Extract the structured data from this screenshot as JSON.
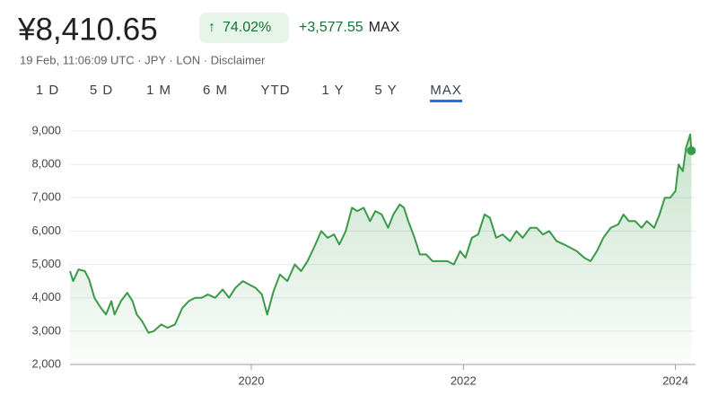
{
  "header": {
    "price": "¥8,410.65",
    "change_pct": "74.02%",
    "change_abs": "+3,577.55",
    "period": "MAX",
    "meta": "19 Feb, 11:06:09 UTC · JPY · LON · Disclaimer"
  },
  "tabs": [
    "1 D",
    "5 D",
    "1 M",
    "6 M",
    "YTD",
    "1 Y",
    "5 Y",
    "MAX"
  ],
  "active_tab": 7,
  "chart_data": {
    "type": "line",
    "color": "#3a9a47",
    "grid": true,
    "x": [
      2018.29,
      2018.32,
      2018.37,
      2018.43,
      2018.47,
      2018.52,
      2018.58,
      2018.63,
      2018.68,
      2018.71,
      2018.77,
      2018.83,
      2018.88,
      2018.92,
      2018.97,
      2019.03,
      2019.08,
      2019.15,
      2019.21,
      2019.28,
      2019.35,
      2019.41,
      2019.47,
      2019.53,
      2019.59,
      2019.66,
      2019.73,
      2019.79,
      2019.85,
      2019.92,
      2019.98,
      2020.04,
      2020.1,
      2020.15,
      2020.21,
      2020.27,
      2020.34,
      2020.41,
      2020.47,
      2020.53,
      2020.59,
      2020.66,
      2020.72,
      2020.78,
      2020.83,
      2020.89,
      2020.95,
      2021.0,
      2021.06,
      2021.12,
      2021.17,
      2021.23,
      2021.29,
      2021.34,
      2021.4,
      2021.44,
      2021.48,
      2021.54,
      2021.59,
      2021.65,
      2021.71,
      2021.78,
      2021.85,
      2021.91,
      2021.97,
      2022.02,
      2022.08,
      2022.14,
      2022.2,
      2022.25,
      2022.31,
      2022.37,
      2022.44,
      2022.5,
      2022.56,
      2022.63,
      2022.69,
      2022.75,
      2022.81,
      2022.88,
      2022.95,
      2023.01,
      2023.07,
      2023.14,
      2023.2,
      2023.26,
      2023.32,
      2023.39,
      2023.46,
      2023.51,
      2023.56,
      2023.62,
      2023.68,
      2023.73,
      2023.8,
      2023.85,
      2023.9,
      2023.95,
      2024.0,
      2024.03,
      2024.07,
      2024.1,
      2024.14,
      2024.15
    ],
    "values": [
      4800,
      4500,
      4850,
      4800,
      4550,
      4000,
      3700,
      3500,
      3900,
      3500,
      3900,
      4150,
      3900,
      3500,
      3300,
      2950,
      3000,
      3200,
      3100,
      3200,
      3700,
      3900,
      4000,
      4000,
      4100,
      4000,
      4250,
      4000,
      4300,
      4500,
      4400,
      4300,
      4100,
      3500,
      4200,
      4700,
      4500,
      5000,
      4800,
      5100,
      5500,
      6000,
      5800,
      5900,
      5600,
      6000,
      6700,
      6600,
      6700,
      6300,
      6600,
      6500,
      6100,
      6500,
      6800,
      6700,
      6300,
      5800,
      5300,
      5300,
      5100,
      5100,
      5100,
      5000,
      5400,
      5200,
      5800,
      5900,
      6500,
      6400,
      5800,
      5900,
      5700,
      6000,
      5800,
      6100,
      6100,
      5900,
      6000,
      5700,
      5600,
      5500,
      5400,
      5200,
      5100,
      5400,
      5800,
      6100,
      6200,
      6500,
      6300,
      6300,
      6100,
      6300,
      6100,
      6500,
      7000,
      7000,
      7200,
      8000,
      7800,
      8500,
      8900,
      8410.65
    ],
    "xlim": [
      2018.29,
      2024.19
    ],
    "xticks": [
      2020,
      2022,
      2024
    ],
    "ylim": [
      2000,
      9000
    ],
    "yticks": [
      {
        "value": 2000,
        "label": "2,000"
      },
      {
        "value": 3000,
        "label": "3,000"
      },
      {
        "value": 4000,
        "label": "4,000"
      },
      {
        "value": 5000,
        "label": "5,000"
      },
      {
        "value": 6000,
        "label": "6,000"
      },
      {
        "value": 7000,
        "label": "7,000"
      },
      {
        "value": 8000,
        "label": "8,000"
      },
      {
        "value": 9000,
        "label": "9,000"
      }
    ]
  }
}
